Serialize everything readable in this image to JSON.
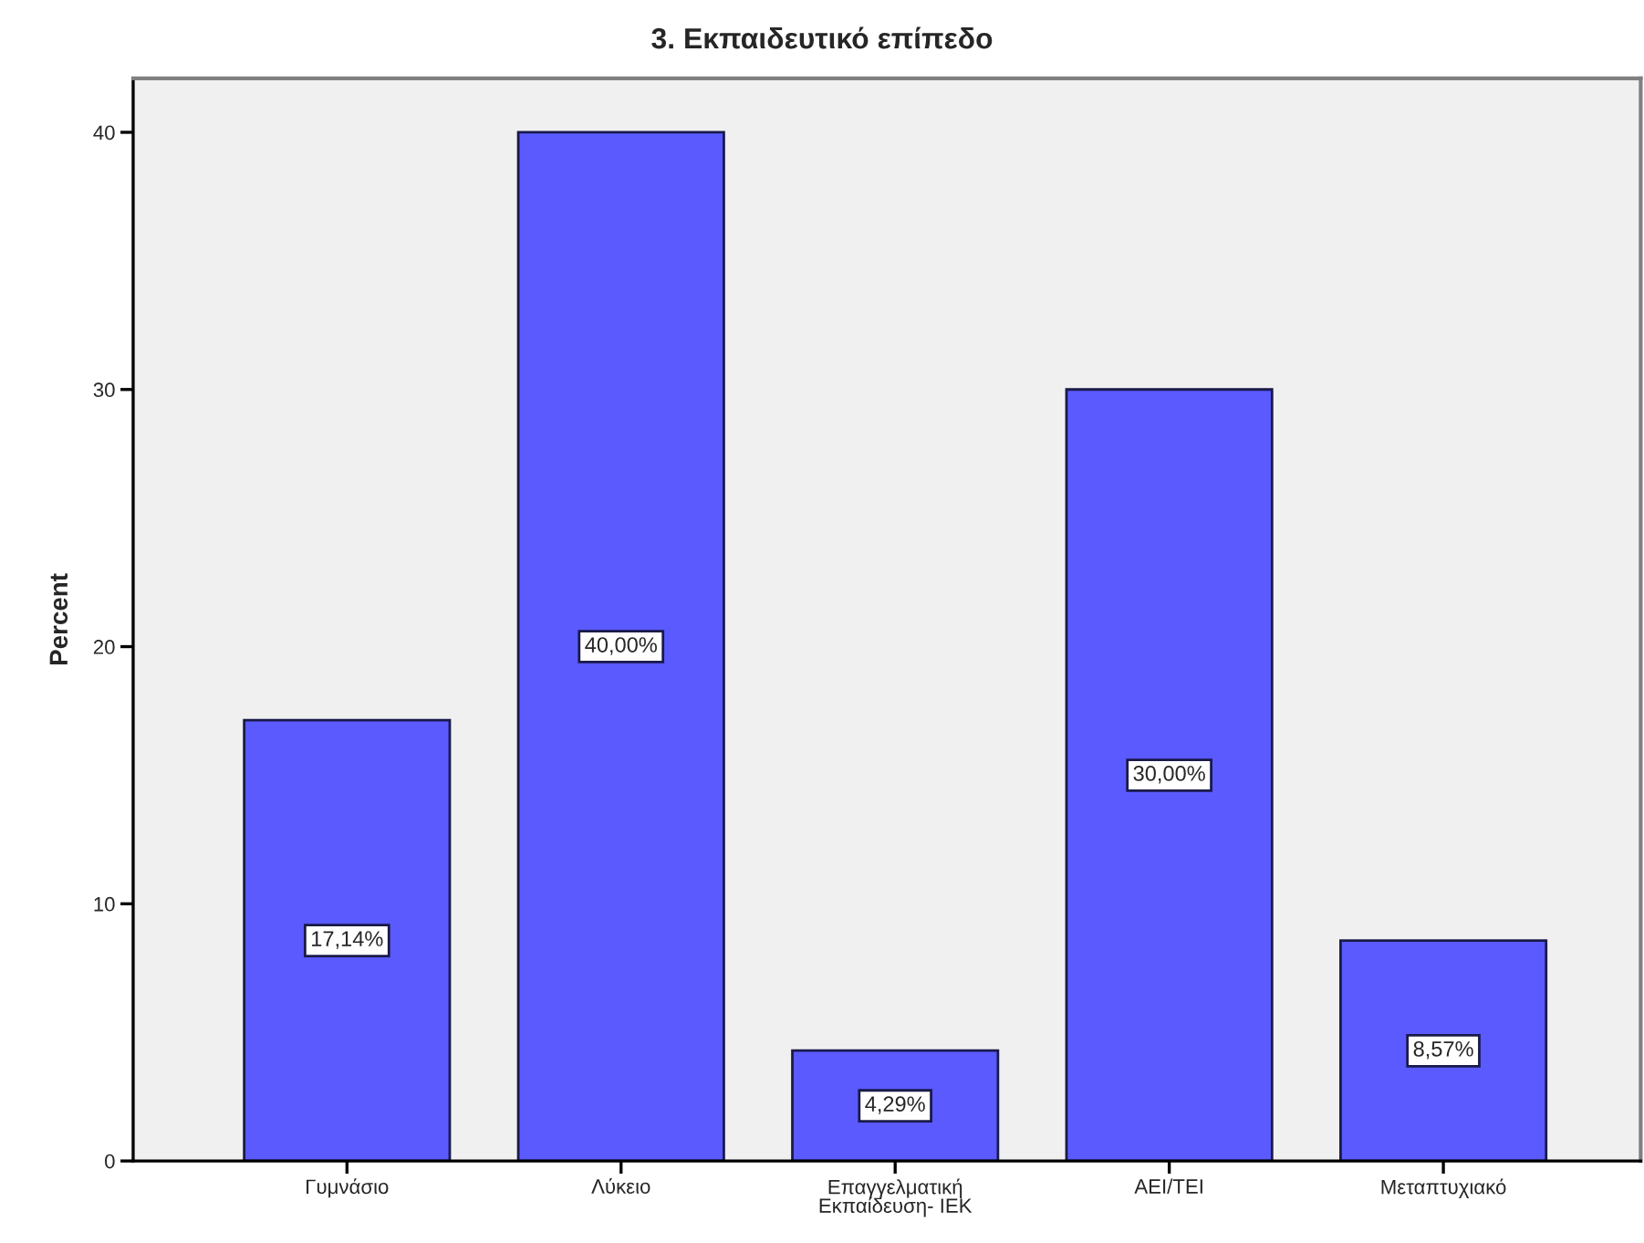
{
  "chart_data": {
    "type": "bar",
    "title": "3. Εκπαιδευτικό επίπεδο",
    "ylabel": "Percent",
    "categories": [
      "Γυμνάσιο",
      "Λύκειο",
      "Επαγγελματική\nΕκπαίδευση- ΙΕΚ",
      "ΑΕΙ/ΤΕΙ",
      "Μεταπτυχιακό"
    ],
    "values": [
      17.14,
      40.0,
      4.29,
      30.0,
      8.57
    ],
    "value_labels": [
      "17,14%",
      "40,00%",
      "4,29%",
      "30,00%",
      "8,57%"
    ],
    "color": "#5a5aff",
    "ylim": [
      0,
      42.1
    ],
    "yticks": [
      0,
      10,
      20,
      30,
      40
    ]
  }
}
